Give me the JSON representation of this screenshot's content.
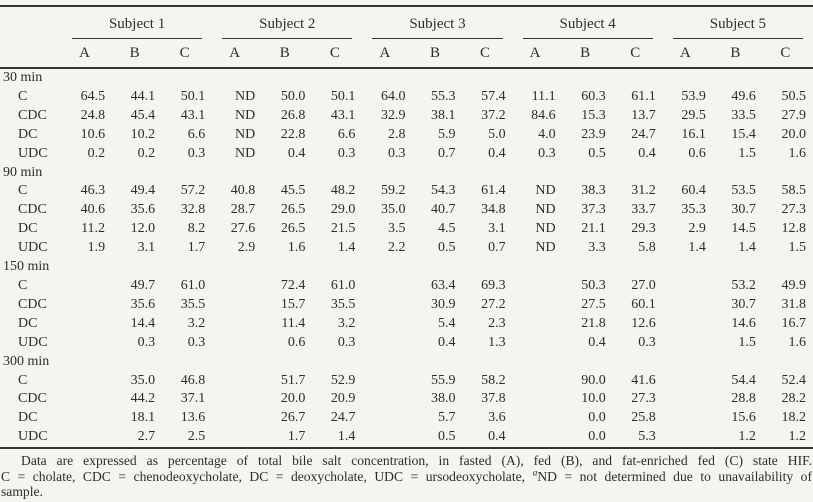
{
  "colors": {
    "paper": "#f5f4f0",
    "ink": "#2d2d2d",
    "rule": "#333330"
  },
  "chart_data": {
    "type": "table",
    "subjects": [
      "Subject 1",
      "Subject 2",
      "Subject 3",
      "Subject 4",
      "Subject 5"
    ],
    "subcols": [
      "A",
      "B",
      "C"
    ],
    "groups": [
      {
        "time": "30 min",
        "rows": [
          {
            "label": "C",
            "values": [
              "64.5",
              "44.1",
              "50.1",
              "ND",
              "50.0",
              "50.1",
              "64.0",
              "55.3",
              "57.4",
              "11.1",
              "60.3",
              "61.1",
              "53.9",
              "49.6",
              "50.5"
            ]
          },
          {
            "label": "CDC",
            "values": [
              "24.8",
              "45.4",
              "43.1",
              "ND",
              "26.8",
              "43.1",
              "32.9",
              "38.1",
              "37.2",
              "84.6",
              "15.3",
              "13.7",
              "29.5",
              "33.5",
              "27.9"
            ]
          },
          {
            "label": "DC",
            "values": [
              "10.6",
              "10.2",
              "6.6",
              "ND",
              "22.8",
              "6.6",
              "2.8",
              "5.9",
              "5.0",
              "4.0",
              "23.9",
              "24.7",
              "16.1",
              "15.4",
              "20.0"
            ]
          },
          {
            "label": "UDC",
            "values": [
              "0.2",
              "0.2",
              "0.3",
              "ND",
              "0.4",
              "0.3",
              "0.3",
              "0.7",
              "0.4",
              "0.3",
              "0.5",
              "0.4",
              "0.6",
              "1.5",
              "1.6"
            ]
          }
        ]
      },
      {
        "time": "90 min",
        "rows": [
          {
            "label": "C",
            "values": [
              "46.3",
              "49.4",
              "57.2",
              "40.8",
              "45.5",
              "48.2",
              "59.2",
              "54.3",
              "61.4",
              "ND",
              "38.3",
              "31.2",
              "60.4",
              "53.5",
              "58.5"
            ]
          },
          {
            "label": "CDC",
            "values": [
              "40.6",
              "35.6",
              "32.8",
              "28.7",
              "26.5",
              "29.0",
              "35.0",
              "40.7",
              "34.8",
              "ND",
              "37.3",
              "33.7",
              "35.3",
              "30.7",
              "27.3"
            ]
          },
          {
            "label": "DC",
            "values": [
              "11.2",
              "12.0",
              "8.2",
              "27.6",
              "26.5",
              "21.5",
              "3.5",
              "4.5",
              "3.1",
              "ND",
              "21.1",
              "29.3",
              "2.9",
              "14.5",
              "12.8"
            ]
          },
          {
            "label": "UDC",
            "values": [
              "1.9",
              "3.1",
              "1.7",
              "2.9",
              "1.6",
              "1.4",
              "2.2",
              "0.5",
              "0.7",
              "ND",
              "3.3",
              "5.8",
              "1.4",
              "1.4",
              "1.5"
            ]
          }
        ]
      },
      {
        "time": "150 min",
        "rows": [
          {
            "label": "C",
            "values": [
              "",
              "49.7",
              "61.0",
              "",
              "72.4",
              "61.0",
              "",
              "63.4",
              "69.3",
              "",
              "50.3",
              "27.0",
              "",
              "53.2",
              "49.9"
            ]
          },
          {
            "label": "CDC",
            "values": [
              "",
              "35.6",
              "35.5",
              "",
              "15.7",
              "35.5",
              "",
              "30.9",
              "27.2",
              "",
              "27.5",
              "60.1",
              "",
              "30.7",
              "31.8"
            ]
          },
          {
            "label": "DC",
            "values": [
              "",
              "14.4",
              "3.2",
              "",
              "11.4",
              "3.2",
              "",
              "5.4",
              "2.3",
              "",
              "21.8",
              "12.6",
              "",
              "14.6",
              "16.7"
            ]
          },
          {
            "label": "UDC",
            "values": [
              "",
              "0.3",
              "0.3",
              "",
              "0.6",
              "0.3",
              "",
              "0.4",
              "1.3",
              "",
              "0.4",
              "0.3",
              "",
              "1.5",
              "1.6"
            ]
          }
        ]
      },
      {
        "time": "300 min",
        "rows": [
          {
            "label": "C",
            "values": [
              "",
              "35.0",
              "46.8",
              "",
              "51.7",
              "52.9",
              "",
              "55.9",
              "58.2",
              "",
              "90.0",
              "41.6",
              "",
              "54.4",
              "52.4"
            ]
          },
          {
            "label": "CDC",
            "values": [
              "",
              "44.2",
              "37.1",
              "",
              "20.0",
              "20.9",
              "",
              "38.0",
              "37.8",
              "",
              "10.0",
              "27.3",
              "",
              "28.8",
              "28.2"
            ]
          },
          {
            "label": "DC",
            "values": [
              "",
              "18.1",
              "13.6",
              "",
              "26.7",
              "24.7",
              "",
              "5.7",
              "3.6",
              "",
              "0.0",
              "25.8",
              "",
              "15.6",
              "18.2"
            ]
          },
          {
            "label": "UDC",
            "values": [
              "",
              "2.7",
              "2.5",
              "",
              "1.7",
              "1.4",
              "",
              "0.5",
              "0.4",
              "",
              "0.0",
              "5.3",
              "",
              "1.2",
              "1.2"
            ]
          }
        ]
      }
    ]
  },
  "footnote": {
    "line1": "Data are expressed as percentage of total bile salt concentration, in fasted (A), fed (B), and fat-enriched fed (C) state HIF.",
    "line2_pre": "C = cholate, CDC = chenodeoxycholate, DC = deoxycholate, UDC = ursodeoxycholate, ",
    "line2_sup": "a",
    "line2_post": "ND = not determined due to unavailability of",
    "line3": "sample."
  }
}
